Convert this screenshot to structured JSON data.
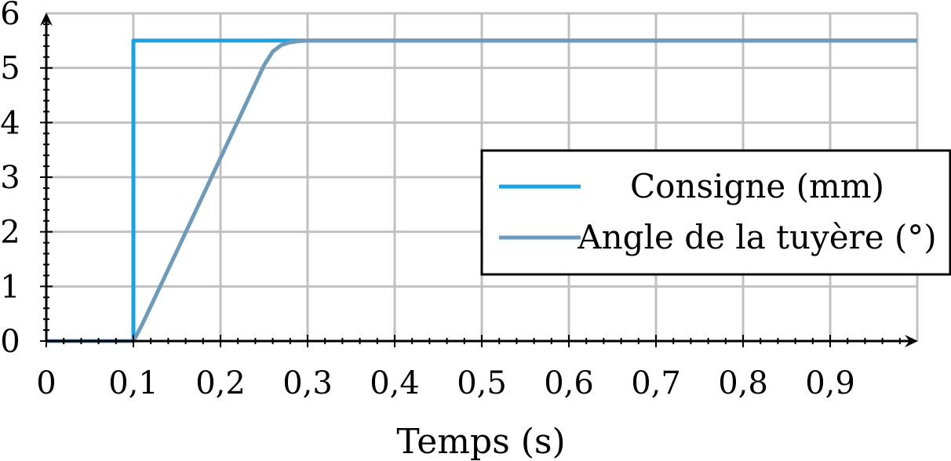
{
  "chart_data": {
    "type": "line",
    "title": "",
    "xlabel": "Temps (s)",
    "ylabel": "",
    "xlim": [
      0,
      1.0
    ],
    "ylim": [
      0,
      6
    ],
    "x_ticks": [
      0,
      0.1,
      0.2,
      0.3,
      0.4,
      0.5,
      0.6,
      0.7,
      0.8,
      0.9
    ],
    "x_tick_labels": [
      "0",
      "0,1",
      "0,2",
      "0,3",
      "0,4",
      "0,5",
      "0,6",
      "0,7",
      "0,8",
      "0,9"
    ],
    "y_ticks": [
      0,
      1,
      2,
      3,
      4,
      5,
      6
    ],
    "y_tick_labels": [
      "0",
      "1",
      "2",
      "3",
      "4",
      "5",
      "6"
    ],
    "grid": true,
    "legend_position": "right",
    "series": [
      {
        "name": "Consigne (mm)",
        "color": "#1aa3e0",
        "x": [
          0,
          0.1,
          0.1,
          1.0
        ],
        "y": [
          0,
          0,
          5.5,
          5.5
        ]
      },
      {
        "name": "Angle de la tuyère (°)",
        "color": "#6f9ab8",
        "x": [
          0,
          0.1,
          0.11,
          0.15,
          0.2,
          0.25,
          0.26,
          0.27,
          0.28,
          0.29,
          0.3,
          0.32,
          1.0
        ],
        "y": [
          0,
          0,
          0.3,
          1.65,
          3.35,
          5.05,
          5.3,
          5.42,
          5.47,
          5.49,
          5.5,
          5.5,
          5.5
        ]
      }
    ]
  }
}
